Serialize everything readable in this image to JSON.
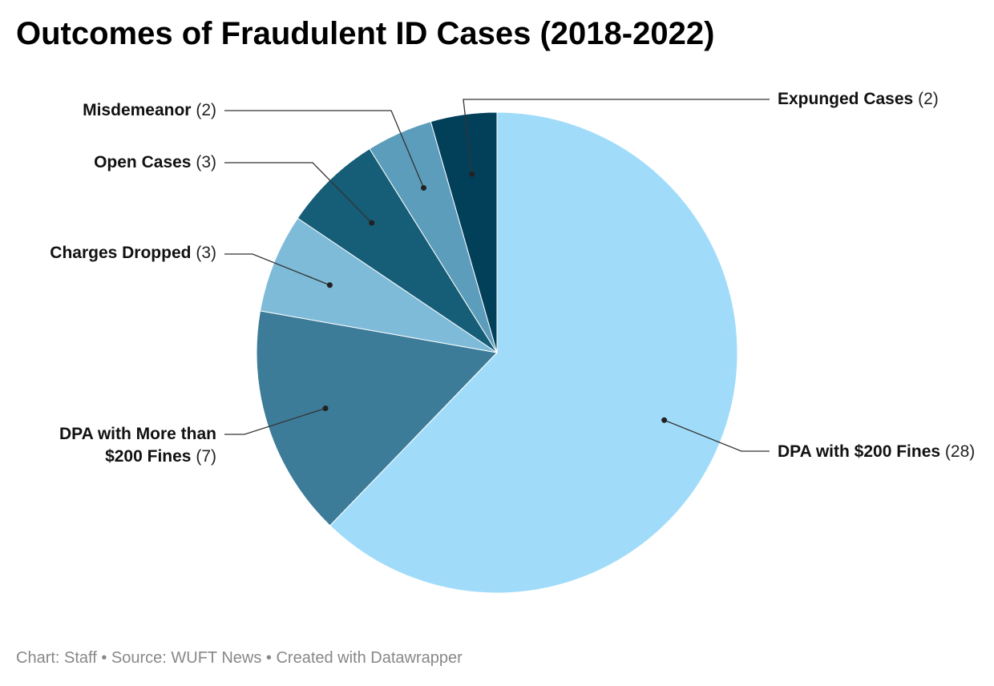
{
  "chart_data": {
    "type": "pie",
    "title": "Outcomes of Fraudulent ID Cases (2018-2022)",
    "categories": [
      "DPA with $200 Fines",
      "DPA with More than $200 Fines",
      "Charges Dropped",
      "Open Cases",
      "Misdemeanor",
      "Expunged Cases"
    ],
    "values": [
      28,
      7,
      3,
      3,
      2,
      2
    ],
    "value_labels": [
      "(28)",
      "(7)",
      "(3)",
      "(3)",
      "(2)",
      "(2)"
    ],
    "colors": [
      "#a0dcfa",
      "#3d7c99",
      "#7dbbd9",
      "#165e78",
      "#5b9dbb",
      "#02405a"
    ],
    "footer": "Chart: Staff • Source: WUFT News • Created with Datawrapper"
  }
}
